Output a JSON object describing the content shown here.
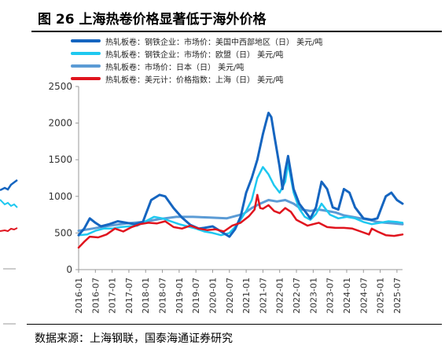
{
  "title": "图 26  上海热卷价格显著低于海外价格",
  "source": "数据来源：上海钢联，国泰海通证券研究",
  "colors": {
    "us": "#1565C0",
    "eu": "#1EC8F0",
    "jp": "#5B9BD5",
    "sh": "#E0141E",
    "axis": "#999999",
    "tick_text": "#333333"
  },
  "chart_data": {
    "type": "line",
    "title": "",
    "xlabel": "",
    "ylabel": "",
    "ylim": [
      0,
      2500
    ],
    "yticks": [
      0,
      500,
      1000,
      1500,
      2000,
      2500
    ],
    "xlim": [
      "2016-01",
      "2025-09"
    ],
    "xticks": [
      "2016-01",
      "2016-07",
      "2017-01",
      "2017-07",
      "2018-01",
      "2018-07",
      "2019-01",
      "2019-07",
      "2020-01",
      "2020-07",
      "2021-01",
      "2021-07",
      "2022-01",
      "2022-07",
      "2023-01",
      "2023-07",
      "2024-01",
      "2024-07",
      "2025-01",
      "2025-07"
    ],
    "grid": false,
    "legend_position": "top",
    "series": [
      {
        "name": "热轧板卷：钢铁企业：市场价：美国中西部地区（日） 美元/吨",
        "color_key": "us",
        "x": [
          "2016-01",
          "2016-03",
          "2016-05",
          "2016-07",
          "2016-09",
          "2016-12",
          "2017-03",
          "2017-06",
          "2017-09",
          "2017-12",
          "2018-03",
          "2018-06",
          "2018-08",
          "2018-11",
          "2019-02",
          "2019-05",
          "2019-08",
          "2019-10",
          "2020-01",
          "2020-04",
          "2020-07",
          "2020-09",
          "2020-11",
          "2021-01",
          "2021-03",
          "2021-05",
          "2021-07",
          "2021-08",
          "2021-09",
          "2021-10",
          "2021-11",
          "2022-01",
          "2022-02",
          "2022-03",
          "2022-04",
          "2022-06",
          "2022-08",
          "2022-10",
          "2022-12",
          "2023-02",
          "2023-04",
          "2023-06",
          "2023-08",
          "2023-10",
          "2023-12",
          "2024-02",
          "2024-04",
          "2024-07",
          "2024-10",
          "2024-12",
          "2025-02",
          "2025-03",
          "2025-05",
          "2025-07",
          "2025-09"
        ],
        "values": [
          470,
          560,
          700,
          640,
          590,
          620,
          660,
          640,
          620,
          650,
          950,
          1020,
          1000,
          840,
          710,
          610,
          560,
          570,
          590,
          520,
          450,
          550,
          720,
          1050,
          1250,
          1500,
          1850,
          2000,
          2140,
          2080,
          1850,
          1400,
          1100,
          1350,
          1550,
          1100,
          900,
          800,
          700,
          850,
          1200,
          1100,
          850,
          820,
          1100,
          1050,
          850,
          700,
          680,
          700,
          900,
          1000,
          1050,
          950,
          900
        ]
      },
      {
        "name": "热轧板卷：钢铁企业：市场价：欧盟（日） 美元/吨",
        "color_key": "eu",
        "x": [
          "2016-01",
          "2016-04",
          "2016-07",
          "2016-10",
          "2017-01",
          "2017-04",
          "2017-07",
          "2017-10",
          "2018-01",
          "2018-04",
          "2018-07",
          "2018-10",
          "2019-01",
          "2019-04",
          "2019-07",
          "2019-10",
          "2020-01",
          "2020-04",
          "2020-07",
          "2020-10",
          "2021-01",
          "2021-03",
          "2021-05",
          "2021-07",
          "2021-09",
          "2021-11",
          "2022-01",
          "2022-03",
          "2022-04",
          "2022-06",
          "2022-08",
          "2022-10",
          "2022-12",
          "2023-02",
          "2023-04",
          "2023-07",
          "2023-10",
          "2024-01",
          "2024-04",
          "2024-07",
          "2024-10",
          "2025-01",
          "2025-04",
          "2025-07",
          "2025-09"
        ],
        "values": [
          470,
          480,
          530,
          560,
          560,
          580,
          590,
          600,
          660,
          720,
          700,
          660,
          620,
          590,
          560,
          520,
          500,
          470,
          500,
          620,
          800,
          950,
          1250,
          1400,
          1300,
          1150,
          1050,
          1200,
          1450,
          1050,
          830,
          720,
          680,
          760,
          900,
          750,
          700,
          720,
          700,
          650,
          620,
          640,
          660,
          650,
          640
        ]
      },
      {
        "name": "热轧板卷：市场价：日本（日） 美元/吨",
        "color_key": "jp",
        "x": [
          "2016-01",
          "2016-06",
          "2016-12",
          "2017-06",
          "2017-12",
          "2018-06",
          "2018-12",
          "2019-06",
          "2019-12",
          "2020-06",
          "2020-12",
          "2021-03",
          "2021-06",
          "2021-09",
          "2021-12",
          "2022-03",
          "2022-06",
          "2022-09",
          "2022-12",
          "2023-03",
          "2023-06",
          "2023-09",
          "2023-12",
          "2024-03",
          "2024-06",
          "2024-09",
          "2024-12",
          "2025-03",
          "2025-06",
          "2025-09"
        ],
        "values": [
          530,
          560,
          600,
          630,
          650,
          690,
          720,
          720,
          710,
          700,
          760,
          840,
          900,
          950,
          930,
          950,
          900,
          820,
          800,
          820,
          800,
          780,
          740,
          720,
          700,
          680,
          650,
          640,
          630,
          620
        ]
      },
      {
        "name": "热轧板卷：美元计：价格指数：上海（日） 美元/吨",
        "color_key": "sh",
        "x": [
          "2016-01",
          "2016-03",
          "2016-05",
          "2016-08",
          "2016-11",
          "2017-02",
          "2017-05",
          "2017-08",
          "2017-11",
          "2018-02",
          "2018-05",
          "2018-08",
          "2018-11",
          "2019-02",
          "2019-05",
          "2019-08",
          "2019-11",
          "2020-02",
          "2020-05",
          "2020-08",
          "2020-11",
          "2021-02",
          "2021-04",
          "2021-05",
          "2021-06",
          "2021-07",
          "2021-09",
          "2021-11",
          "2022-01",
          "2022-03",
          "2022-05",
          "2022-07",
          "2022-09",
          "2022-11",
          "2023-01",
          "2023-03",
          "2023-06",
          "2023-09",
          "2023-12",
          "2024-03",
          "2024-06",
          "2024-09",
          "2024-10",
          "2024-12",
          "2025-03",
          "2025-06",
          "2025-09"
        ],
        "values": [
          300,
          380,
          450,
          440,
          480,
          560,
          520,
          580,
          620,
          640,
          630,
          660,
          580,
          560,
          600,
          560,
          540,
          550,
          520,
          600,
          640,
          730,
          820,
          1020,
          840,
          830,
          880,
          800,
          770,
          840,
          790,
          680,
          640,
          600,
          620,
          640,
          580,
          570,
          570,
          560,
          520,
          480,
          560,
          520,
          470,
          460,
          480
        ]
      }
    ]
  }
}
